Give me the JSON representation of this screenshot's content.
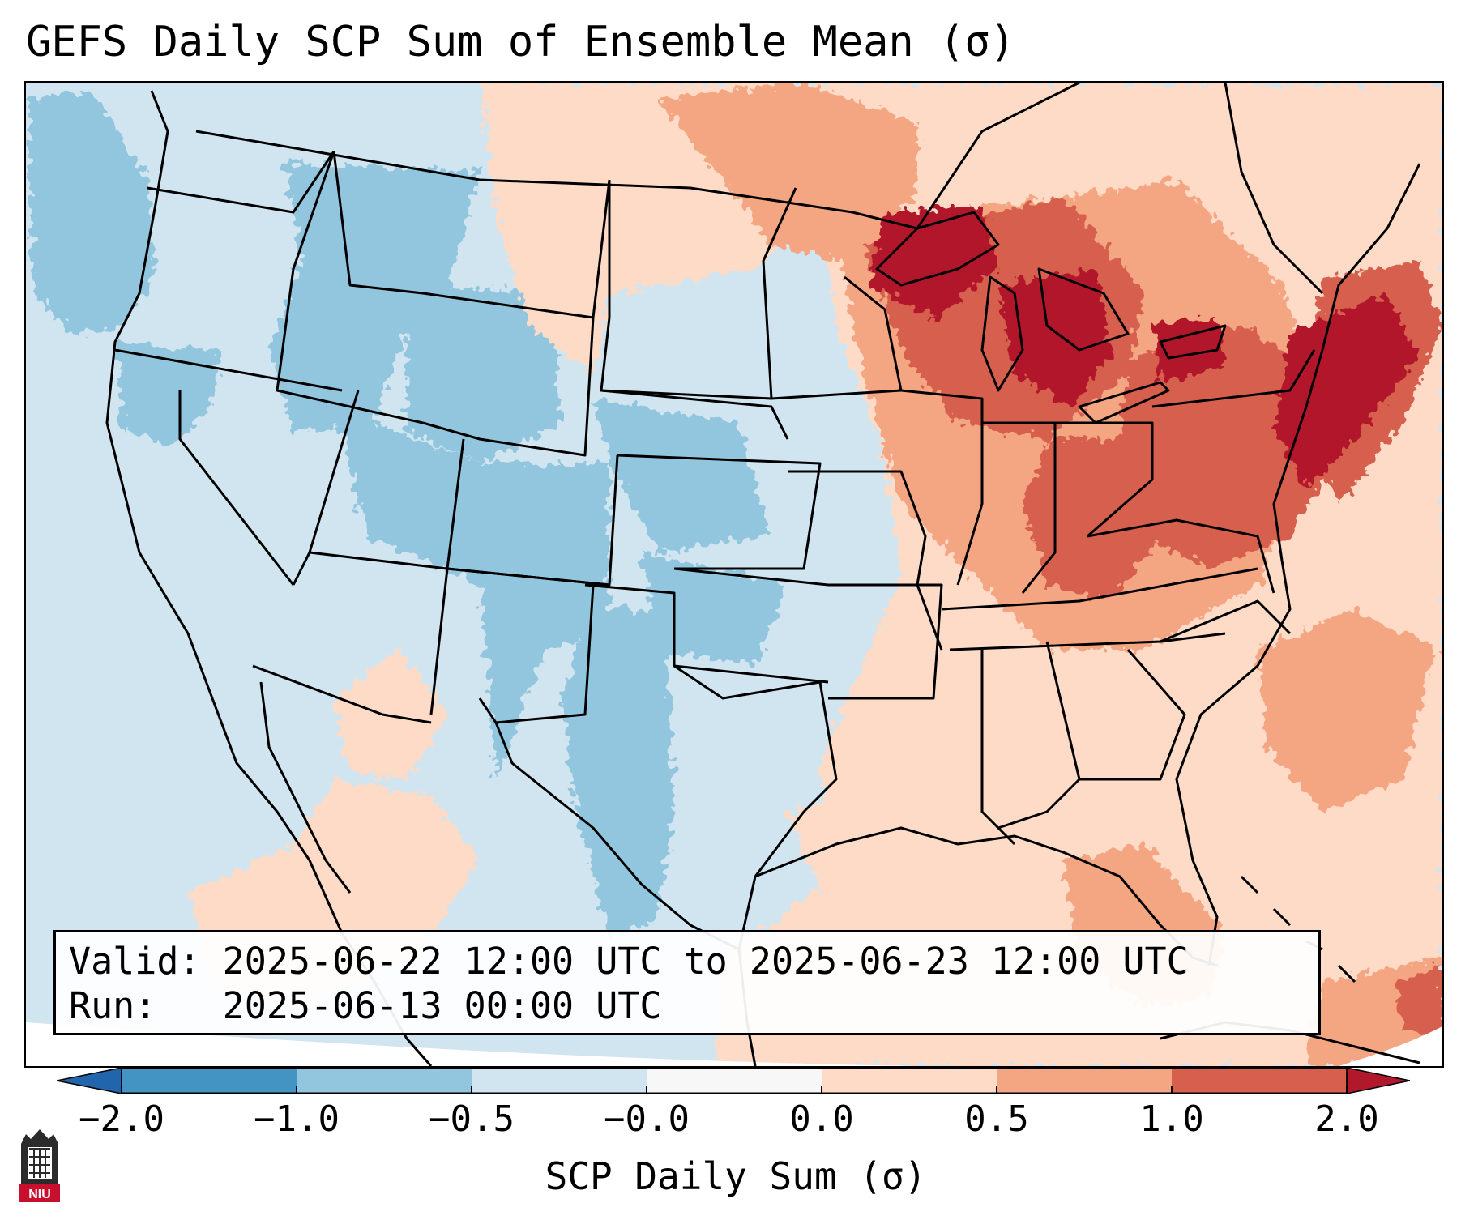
{
  "title": "GEFS Daily SCP Sum of Ensemble Mean (σ)",
  "info": {
    "valid_line": "Valid: 2025-06-22 12:00 UTC to 2025-06-23 12:00 UTC",
    "run_line": "Run:   2025-06-13 00:00 UTC"
  },
  "colorbar": {
    "label": "SCP Daily Sum (σ)",
    "ticks": [
      "−2.0",
      "−1.0",
      "−0.5",
      "−0.0",
      "0.0",
      "0.5",
      "1.0",
      "2.0"
    ],
    "colors": [
      "#4393c3",
      "#92c5de",
      "#d1e5f0",
      "#f7f7f7",
      "#fddbc7",
      "#f4a582",
      "#d6604d",
      "#b2182b"
    ],
    "under_color": "#2166ac",
    "over_color": "#b2182b"
  },
  "map_colors": {
    "ocean": "#d1e5f0",
    "neg_mid": "#92c5de",
    "neg_strong": "#4393c3",
    "pos_light": "#fddbc7",
    "pos_mid": "#f4a582",
    "pos_strong": "#d6604d",
    "pos_max": "#b2182b",
    "outside": "#ffffff"
  },
  "logo": {
    "text": "NIU",
    "color": "#c8102e"
  }
}
